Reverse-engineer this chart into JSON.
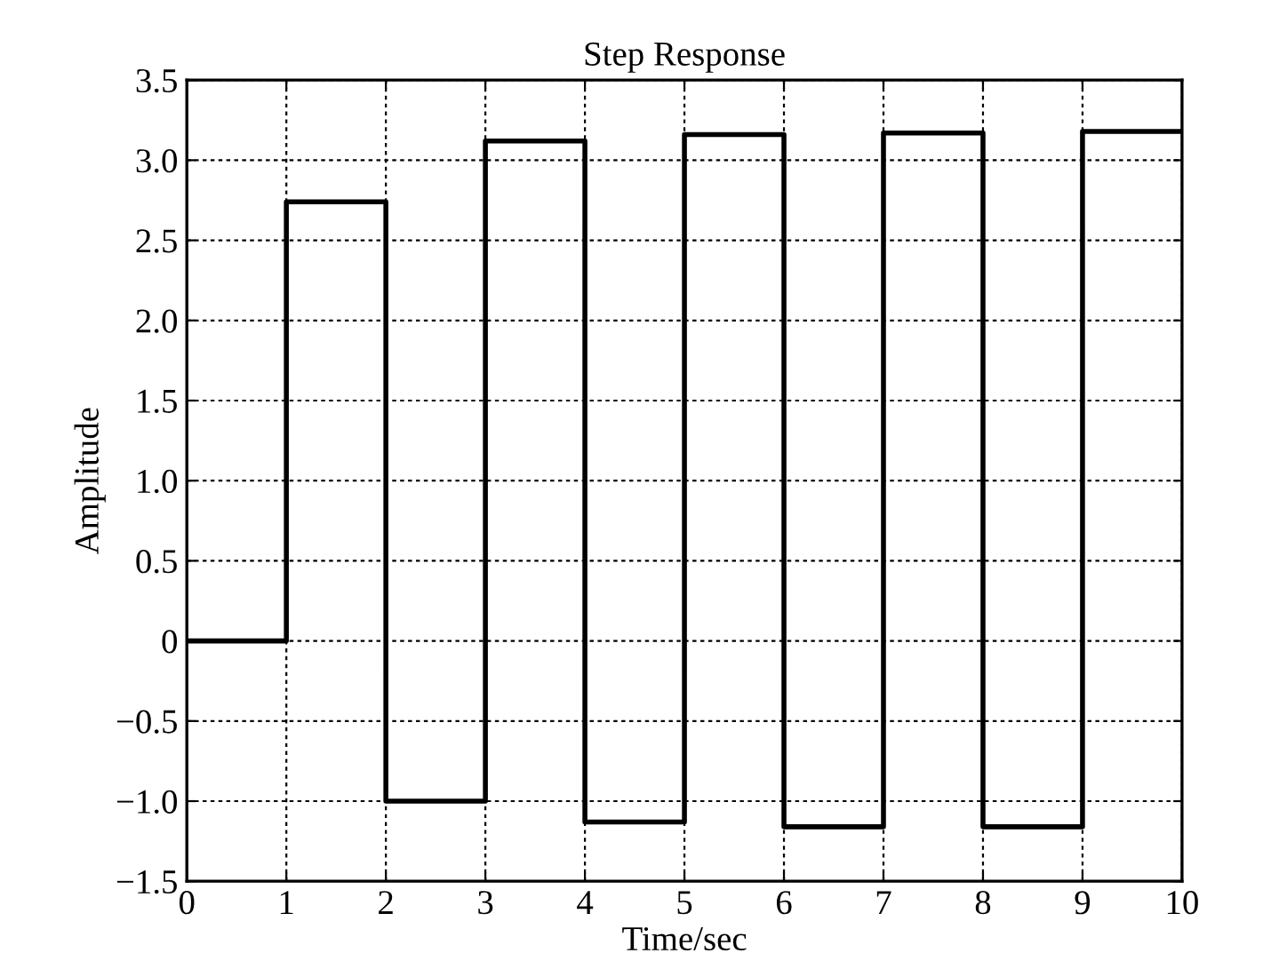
{
  "chart_data": {
    "type": "step",
    "title": "Step Response",
    "xlabel": "Time/sec",
    "ylabel": "Amplitude",
    "x": [
      0,
      1,
      2,
      3,
      4,
      5,
      6,
      7,
      8,
      9,
      10
    ],
    "series": [
      {
        "color": "#000000",
        "values": [
          0,
          2.74,
          -1.0,
          3.12,
          -1.13,
          3.16,
          -1.16,
          3.17,
          -1.16,
          3.18,
          3.18
        ]
      }
    ],
    "xlim": [
      0,
      10
    ],
    "ylim": [
      -1.5,
      3.5
    ],
    "xticks": [
      0,
      1,
      2,
      3,
      4,
      5,
      6,
      7,
      8,
      9,
      10
    ],
    "yticks": [
      {
        "value": -1.5,
        "label": "−1.5"
      },
      {
        "value": -1.0,
        "label": "−1.0"
      },
      {
        "value": -0.5,
        "label": "−0.5"
      },
      0,
      {
        "value": 0.5,
        "label": "0.5"
      },
      {
        "value": 1.0,
        "label": "1.0"
      },
      {
        "value": 1.5,
        "label": "1.5"
      },
      {
        "value": 2.0,
        "label": "2.0"
      },
      {
        "value": 2.5,
        "label": "2.5"
      },
      {
        "value": 3.0,
        "label": "3.0"
      },
      {
        "value": 3.5,
        "label": "3.5"
      }
    ],
    "grid": true,
    "line_style": "solid"
  }
}
